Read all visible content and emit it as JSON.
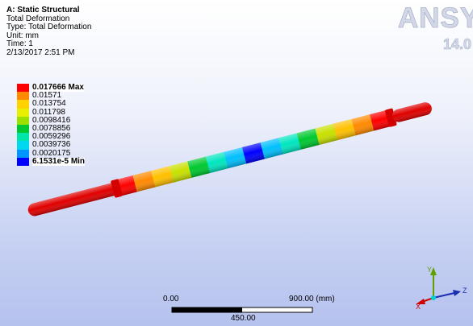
{
  "info": {
    "analysis": "A: Static Structural",
    "result": "Total Deformation",
    "type": "Type: Total Deformation",
    "unit": "Unit: mm",
    "time": "Time: 1",
    "date": "2/13/2017 2:51 PM"
  },
  "legend": {
    "entries": [
      {
        "label": "0.017666 Max",
        "color": "#ff0000"
      },
      {
        "label": "0.01571",
        "color": "#ff8a00"
      },
      {
        "label": "0.013754",
        "color": "#ffd200"
      },
      {
        "label": "0.011798",
        "color": "#e6f000"
      },
      {
        "label": "0.0098416",
        "color": "#9ce000"
      },
      {
        "label": "0.0078856",
        "color": "#00c830"
      },
      {
        "label": "0.0059296",
        "color": "#00e6a8"
      },
      {
        "label": "0.0039736",
        "color": "#00d8f2"
      },
      {
        "label": "0.0020175",
        "color": "#0096ff"
      },
      {
        "label": "6.1531e-5 Min",
        "color": "#0000ff"
      }
    ]
  },
  "logo": {
    "brand": "ANSYS",
    "version": "14.0"
  },
  "scale_bar": {
    "left": "0.00",
    "mid": "450.00",
    "right": "900.00 (mm)"
  },
  "triad": {
    "x": "X",
    "y": "Y",
    "z": "Z"
  },
  "model": {
    "shaft_segments": [
      "#ff0000",
      "#ff8a00",
      "#ffc000",
      "#c8e000",
      "#00c830",
      "#00e6c0",
      "#00bfff",
      "#0000ff",
      "#00bfff",
      "#00e6c0",
      "#00c830",
      "#c8e000",
      "#ffc000",
      "#ff8a00",
      "#ff0000"
    ]
  }
}
